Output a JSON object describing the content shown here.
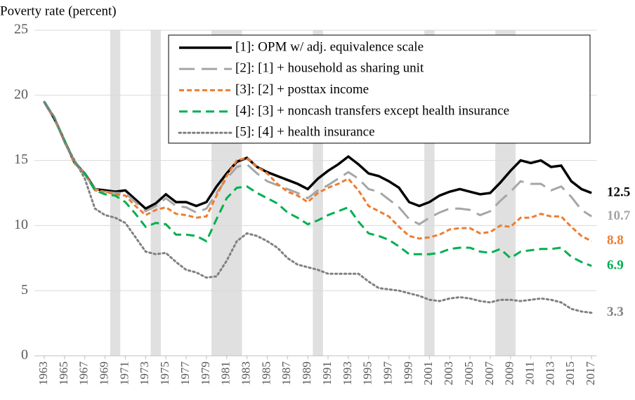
{
  "chart_data": {
    "type": "line",
    "ylabel": "Poverty rate (percent)",
    "x": [
      1963,
      1964,
      1965,
      1966,
      1967,
      1968,
      1969,
      1970,
      1971,
      1972,
      1973,
      1974,
      1975,
      1976,
      1977,
      1978,
      1979,
      1980,
      1981,
      1982,
      1983,
      1984,
      1985,
      1986,
      1987,
      1988,
      1989,
      1990,
      1991,
      1992,
      1993,
      1994,
      1995,
      1996,
      1997,
      1998,
      1999,
      2000,
      2001,
      2002,
      2003,
      2004,
      2005,
      2006,
      2007,
      2008,
      2009,
      2010,
      2011,
      2012,
      2013,
      2014,
      2015,
      2016,
      2017
    ],
    "xlim": [
      1962.5,
      2017.5
    ],
    "xticks": [
      1963,
      1965,
      1967,
      1969,
      1971,
      1973,
      1975,
      1977,
      1979,
      1981,
      1983,
      1985,
      1987,
      1989,
      1991,
      1993,
      1995,
      1997,
      1999,
      2001,
      2003,
      2005,
      2007,
      2009,
      2011,
      2013,
      2015,
      2017
    ],
    "ylim": [
      0,
      25
    ],
    "yticks": [
      0,
      5,
      10,
      15,
      20,
      25
    ],
    "grid": true,
    "legend": "top-right",
    "recessions": [
      [
        1970,
        1970
      ],
      [
        1974,
        1974
      ],
      [
        1980,
        1982
      ],
      [
        1990,
        1990
      ],
      [
        2001,
        2001
      ],
      [
        2008,
        2009
      ]
    ],
    "recession_color": "#e0e0e0",
    "series": [
      {
        "name": "[1]: OPM w/ adj. equivalence scale",
        "color": "#000000",
        "dash": "solid",
        "values": [
          19.5,
          18.2,
          16.5,
          14.8,
          14.0,
          12.8,
          12.7,
          12.6,
          12.7,
          12.0,
          11.3,
          11.7,
          12.4,
          11.8,
          11.8,
          11.5,
          11.8,
          13.0,
          14.0,
          14.9,
          15.2,
          14.5,
          14.1,
          13.8,
          13.5,
          13.2,
          12.8,
          13.6,
          14.2,
          14.7,
          15.3,
          14.7,
          14.0,
          13.8,
          13.4,
          12.9,
          11.8,
          11.5,
          11.8,
          12.3,
          12.6,
          12.8,
          12.6,
          12.4,
          12.5,
          13.3,
          14.2,
          15.0,
          14.8,
          15.0,
          14.5,
          14.6,
          13.4,
          12.8,
          12.5
        ]
      },
      {
        "name": "[2]: [1] + household as sharing unit",
        "color": "#a6a6a6",
        "dash": "long-dash",
        "values": [
          19.5,
          18.2,
          16.4,
          14.8,
          13.9,
          12.8,
          12.6,
          12.5,
          12.5,
          11.8,
          11.1,
          11.5,
          12.1,
          11.5,
          11.4,
          11.0,
          11.3,
          12.5,
          13.6,
          14.5,
          14.7,
          14.0,
          13.4,
          13.1,
          12.8,
          12.5,
          12.1,
          12.7,
          13.1,
          13.6,
          14.1,
          13.6,
          12.8,
          12.6,
          12.0,
          11.4,
          10.5,
          10.1,
          10.6,
          11.0,
          11.3,
          11.3,
          11.2,
          10.8,
          11.1,
          11.9,
          12.6,
          13.4,
          13.2,
          13.2,
          12.7,
          13.0,
          12.2,
          11.2,
          10.7
        ]
      },
      {
        "name": "[3]: [2] + posttax income",
        "color": "#ed7d31",
        "dash": "short-dash",
        "values": [
          19.5,
          18.3,
          16.5,
          14.8,
          14.0,
          12.7,
          12.6,
          12.4,
          12.3,
          11.5,
          10.8,
          11.2,
          11.4,
          10.9,
          10.8,
          10.6,
          10.7,
          12.3,
          13.8,
          15.0,
          15.2,
          14.5,
          14.0,
          13.2,
          12.6,
          12.3,
          11.8,
          12.5,
          12.9,
          13.2,
          13.6,
          12.7,
          11.5,
          11.1,
          10.7,
          9.9,
          9.2,
          9.0,
          9.1,
          9.3,
          9.7,
          9.8,
          9.8,
          9.4,
          9.5,
          10.0,
          9.9,
          10.6,
          10.6,
          10.9,
          10.7,
          10.7,
          9.9,
          9.2,
          8.8
        ]
      },
      {
        "name": "[4]: [3] + noncash transfers except health insurance",
        "color": "#00b050",
        "dash": "dash",
        "values": [
          19.5,
          18.3,
          16.5,
          14.9,
          14.0,
          12.7,
          12.4,
          12.3,
          11.8,
          10.9,
          9.9,
          10.2,
          10.1,
          9.3,
          9.3,
          9.2,
          8.8,
          10.5,
          12.1,
          12.9,
          13.0,
          12.5,
          12.1,
          11.7,
          11.0,
          10.6,
          10.1,
          10.4,
          10.8,
          11.1,
          11.4,
          10.3,
          9.4,
          9.2,
          8.9,
          8.4,
          7.8,
          7.8,
          7.8,
          7.9,
          8.2,
          8.3,
          8.3,
          8.0,
          7.9,
          8.2,
          7.5,
          8.0,
          8.1,
          8.2,
          8.2,
          8.3,
          7.6,
          7.2,
          6.9
        ]
      },
      {
        "name": "[5]: [4] + health insurance",
        "color": "#808080",
        "dash": "dot",
        "values": [
          19.5,
          18.3,
          16.4,
          15.0,
          13.6,
          11.3,
          10.8,
          10.6,
          10.2,
          9.1,
          8.0,
          7.8,
          7.9,
          7.2,
          6.6,
          6.4,
          6.0,
          6.1,
          7.3,
          8.8,
          9.4,
          9.2,
          8.8,
          8.3,
          7.5,
          7.0,
          6.8,
          6.6,
          6.3,
          6.3,
          6.3,
          6.3,
          5.7,
          5.2,
          5.1,
          5.0,
          4.8,
          4.6,
          4.3,
          4.2,
          4.4,
          4.5,
          4.4,
          4.2,
          4.1,
          4.3,
          4.3,
          4.2,
          4.3,
          4.4,
          4.3,
          4.1,
          3.6,
          3.4,
          3.3
        ]
      }
    ]
  }
}
